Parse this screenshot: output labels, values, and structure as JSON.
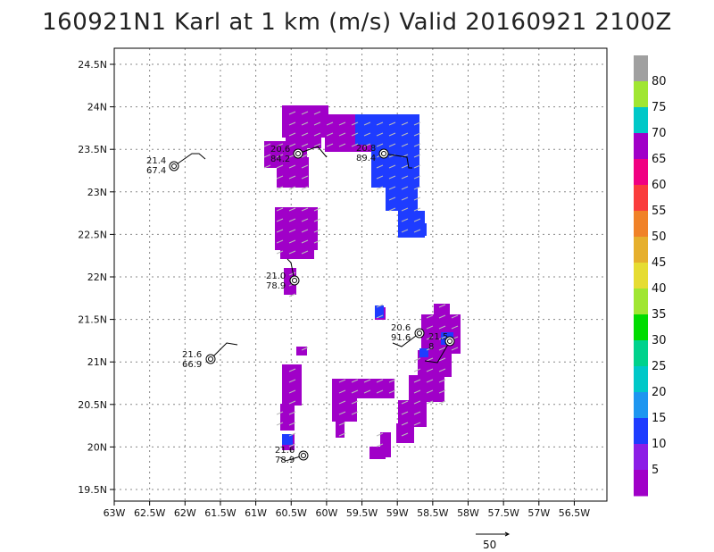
{
  "title": "160921N1 Karl at 1 km (m/s) Valid 20160921 2100Z",
  "x_ticks": [
    "63W",
    "62.5W",
    "62W",
    "61.5W",
    "61W",
    "60.5W",
    "60W",
    "59.5W",
    "59W",
    "58.5W",
    "58W",
    "57.5W",
    "57W",
    "56.5W"
  ],
  "y_ticks": [
    "24.5N",
    "24N",
    "23.5N",
    "23N",
    "22.5N",
    "22N",
    "21.5N",
    "21N",
    "20.5N",
    "20N",
    "19.5N"
  ],
  "colorbar": {
    "labels": [
      "80",
      "75",
      "70",
      "65",
      "60",
      "55",
      "50",
      "45",
      "40",
      "35",
      "30",
      "25",
      "20",
      "15",
      "10",
      "5"
    ],
    "colors": [
      "#a0a0a0",
      "#a0e632",
      "#00c8c8",
      "#a000c8",
      "#f00082",
      "#fa3c3c",
      "#f08228",
      "#e6af2d",
      "#e6dc32",
      "#a0e632",
      "#00dc00",
      "#00d28c",
      "#00c8c8",
      "#1e96f0",
      "#1e3cff",
      "#8c1ee6",
      "#a000c8"
    ]
  },
  "reference_vector": "50",
  "stations": [
    {
      "lat": "21.4",
      "val": "67.4"
    },
    {
      "lat": "20.6",
      "val": "84.2"
    },
    {
      "lat": "20.8",
      "val": "89.4"
    },
    {
      "lat": "21.0",
      "val": "78.9"
    },
    {
      "lat": "20.6",
      "val": "91.6"
    },
    {
      "lat": "21.5",
      "val": "8"
    },
    {
      "lat": "21.6",
      "val": "66.9"
    },
    {
      "lat": "21.6",
      "val": "78.9"
    }
  ],
  "data_regions": [
    {
      "name": "north-arc",
      "color": "#a000c8"
    },
    {
      "name": "north-arc-core",
      "color": "#1e3cff"
    },
    {
      "name": "west-block",
      "color": "#a000c8"
    },
    {
      "name": "east-band",
      "color": "#a000c8"
    },
    {
      "name": "south-west-strip",
      "color": "#a000c8"
    },
    {
      "name": "south-arc",
      "color": "#a000c8"
    }
  ]
}
